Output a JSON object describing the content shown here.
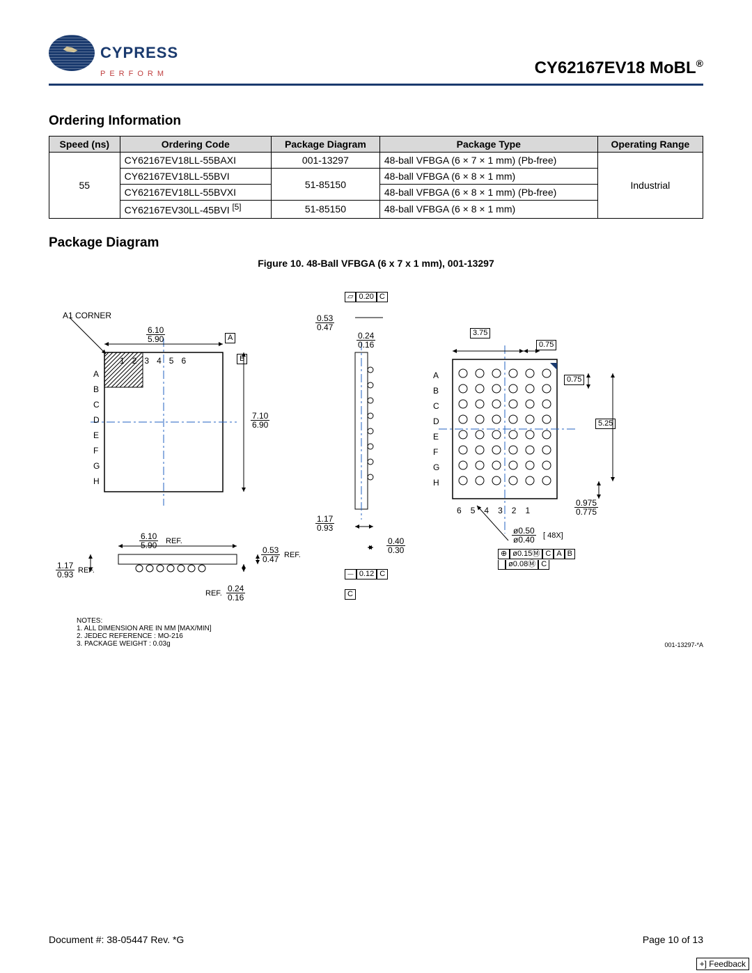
{
  "header": {
    "logo_text": "CYPRESS",
    "logo_sub": "PERFORM",
    "product": "CY62167EV18 MoBL",
    "reg": "®"
  },
  "sections": {
    "ordering_title": "Ordering Information",
    "package_title": "Package Diagram",
    "figure_caption": "Figure 10. 48-Ball VFBGA (6 x 7 x 1 mm), 001-13297"
  },
  "ordering_table": {
    "columns": [
      "Speed (ns)",
      "Ordering Code",
      "Package Diagram",
      "Package Type",
      "Operating Range"
    ],
    "speed": "55",
    "rows": [
      {
        "code": "CY62167EV18LL-55BAXI",
        "pkg": "001-13297",
        "type": "48-ball VFBGA (6 × 7 × 1 mm) (Pb-free)"
      },
      {
        "code": "CY62167EV18LL-55BVI",
        "pkg": "51-85150",
        "type": "48-ball VFBGA (6 × 8 × 1 mm)"
      },
      {
        "code": "CY62167EV18LL-55BVXI",
        "pkg": "",
        "type": "48-ball VFBGA (6 × 8 × 1 mm) (Pb-free)"
      },
      {
        "code": "CY62167EV30LL-45BVI",
        "pkg": "51-85150",
        "type": "48-ball VFBGA (6 × 8 × 1 mm)",
        "note": "[5]"
      }
    ],
    "op_range": "Industrial"
  },
  "diagram": {
    "a1_label": "A1  CORNER",
    "row_letters": [
      "A",
      "B",
      "C",
      "D",
      "E",
      "F",
      "G",
      "H"
    ],
    "col_numbers_top": [
      "1",
      "2",
      "3",
      "4",
      "5",
      "6"
    ],
    "col_numbers_bottom": [
      "6",
      "5",
      "4",
      "3",
      "2",
      "1"
    ],
    "dims": {
      "w_top": "6.10",
      "w_bot": "5.90",
      "h_top": "7.10",
      "h_bot": "6.90",
      "side_h_top": "0.53",
      "side_h_bot": "0.47",
      "side_w_top": "0.24",
      "side_w_bot": "0.16",
      "prof_h_top": "1.17",
      "prof_h_bot": "0.93",
      "prof_w_top": "6.10",
      "prof_w_bot": "5.90",
      "body_t_top": "0.53",
      "body_t_bot": "0.47",
      "stand_top": "0.24",
      "stand_bot": "0.16",
      "ball_top": "0.40",
      "ball_bot": "0.30",
      "pitch_x": "3.75",
      "pitch_half": "0.75",
      "pitch_y": "0.75",
      "array_h": "5.25",
      "edge_top": "0.975",
      "edge_bot": "0.775",
      "balldia_top": "ø0.50",
      "balldia_bot": "ø0.40",
      "flat_tol": "0.20",
      "copl": "0.12",
      "pos1": "ø0.15",
      "pos2": "ø0.08"
    },
    "datums": {
      "A": "A",
      "B": "B",
      "C": "C"
    },
    "callouts": {
      "fortyeight": "[ 48X]",
      "ref": "REF.",
      "m": "M"
    },
    "notes_title": "NOTES:",
    "notes": [
      "1. ALL DIMENSION ARE IN MM [MAX/MIN]",
      "2. JEDEC REFERENCE : MO-216",
      "3. PACKAGE WEIGHT : 0.03g"
    ],
    "dwg_no": "001-13297-*A"
  },
  "footer": {
    "doc": "Document #: 38-05447 Rev. *G",
    "page": "Page 10 of 13",
    "feedback": "+] Feedback"
  },
  "colors": {
    "rule": "#1a3a6e",
    "centerline": "#2060c0",
    "header_bg": "#d9d9d9"
  }
}
